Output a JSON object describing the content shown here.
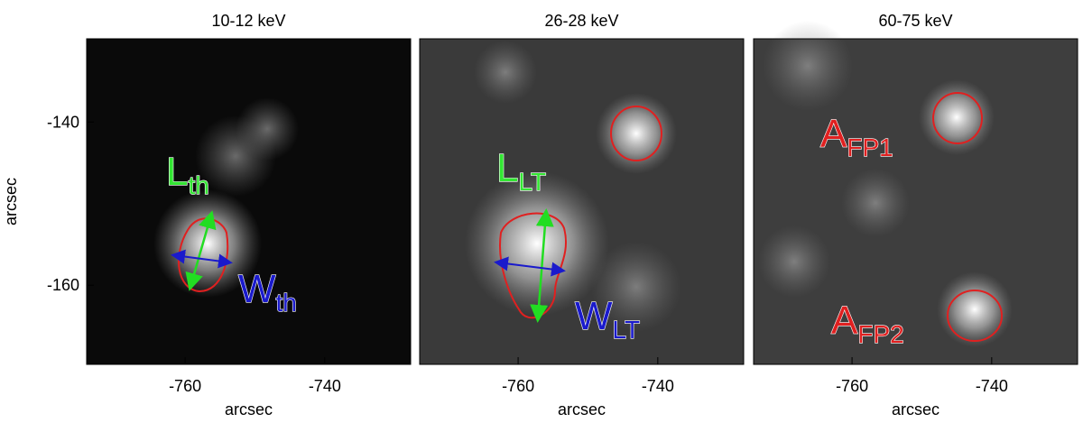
{
  "chart_data": [
    {
      "type": "image",
      "title": "10-12 keV",
      "xlabel": "arcsec",
      "ylabel": "arcsec",
      "xlim": [
        -774.1,
        -727.7
      ],
      "xticks": [
        -760,
        -740
      ],
      "ylim": [
        -169.7,
        -129.8
      ],
      "yticks": [
        -140,
        -160
      ],
      "annotations": [
        {
          "text": "L",
          "sub": "th",
          "color": "#33e633"
        },
        {
          "text": "W",
          "sub": "th",
          "color": "#1a1acc"
        }
      ]
    },
    {
      "type": "image",
      "title": "26-28 keV",
      "xlabel": "arcsec",
      "xlim": [
        -774.1,
        -727.7
      ],
      "xticks": [
        -760,
        -740
      ],
      "annotations": [
        {
          "text": "L",
          "sub": "LT",
          "color": "#33e633"
        },
        {
          "text": "W",
          "sub": "LT",
          "color": "#1a1acc"
        }
      ]
    },
    {
      "type": "image",
      "title": "60-75 keV",
      "xlabel": "arcsec",
      "xlim": [
        -774.1,
        -727.7
      ],
      "xticks": [
        -760,
        -740
      ],
      "annotations": [
        {
          "text": "A",
          "sub": "FP1",
          "color": "#e02020"
        },
        {
          "text": "A",
          "sub": "FP2",
          "color": "#e02020"
        }
      ]
    }
  ]
}
